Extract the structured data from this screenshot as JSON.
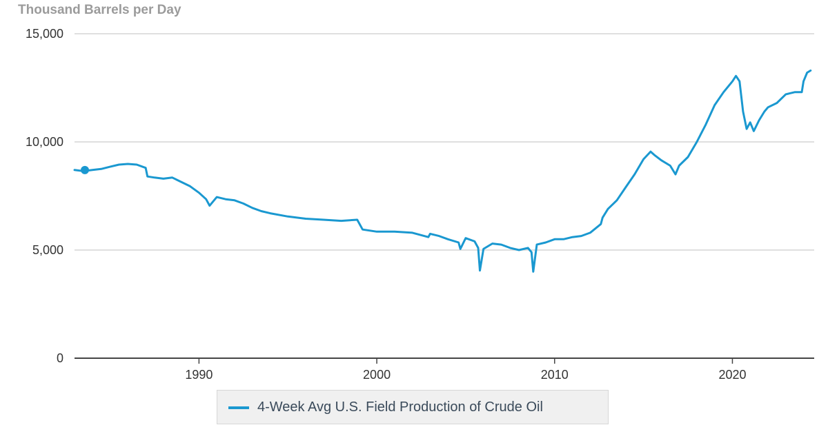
{
  "chart_data": {
    "type": "line",
    "title": "",
    "ylabel": "Thousand Barrels per Day",
    "xlabel": "",
    "xlim": [
      1983.0,
      2024.6
    ],
    "ylim": [
      0,
      15000
    ],
    "yticks": [
      0,
      5000,
      10000,
      15000
    ],
    "ytick_labels": [
      "0",
      "5,000",
      "10,000",
      "15,000"
    ],
    "xticks": [
      1990,
      2000,
      2010,
      2020
    ],
    "xtick_labels": [
      "1990",
      "2000",
      "2010",
      "2020"
    ],
    "grid": true,
    "legend_position": "bottom-center",
    "colors": {
      "series": "#1a98d0",
      "grid": "#cccccc",
      "axis": "#444444"
    },
    "series": [
      {
        "name": "4-Week Avg U.S. Field Production of Crude Oil",
        "x": [
          1983.0,
          1983.5,
          1984.0,
          1984.5,
          1985.0,
          1985.5,
          1986.0,
          1986.5,
          1987.0,
          1987.1,
          1987.5,
          1988.0,
          1988.5,
          1989.0,
          1989.5,
          1990.0,
          1990.4,
          1990.6,
          1991.0,
          1991.5,
          1992.0,
          1992.5,
          1993.0,
          1993.5,
          1994.0,
          1995.0,
          1996.0,
          1997.0,
          1998.0,
          1998.9,
          1999.2,
          2000.0,
          2001.0,
          2002.0,
          2002.9,
          2003.0,
          2003.5,
          2004.0,
          2004.6,
          2004.7,
          2005.0,
          2005.5,
          2005.7,
          2005.8,
          2006.0,
          2006.5,
          2007.0,
          2007.5,
          2008.0,
          2008.5,
          2008.7,
          2008.8,
          2009.0,
          2009.5,
          2010.0,
          2010.5,
          2011.0,
          2011.5,
          2012.0,
          2012.6,
          2012.7,
          2013.0,
          2013.5,
          2014.0,
          2014.5,
          2015.0,
          2015.4,
          2015.6,
          2016.0,
          2016.5,
          2016.8,
          2017.0,
          2017.5,
          2018.0,
          2018.5,
          2019.0,
          2019.5,
          2020.0,
          2020.2,
          2020.4,
          2020.6,
          2020.8,
          2021.0,
          2021.2,
          2021.5,
          2021.8,
          2022.0,
          2022.5,
          2023.0,
          2023.5,
          2023.9,
          2024.0,
          2024.2,
          2024.4
        ],
        "values": [
          8700,
          8650,
          8700,
          8750,
          8850,
          8950,
          8980,
          8950,
          8800,
          8400,
          8350,
          8300,
          8350,
          8150,
          7950,
          7650,
          7350,
          7050,
          7450,
          7350,
          7300,
          7150,
          6950,
          6800,
          6700,
          6550,
          6450,
          6400,
          6350,
          6400,
          5950,
          5850,
          5850,
          5800,
          5600,
          5750,
          5650,
          5500,
          5350,
          5050,
          5550,
          5400,
          5100,
          4050,
          5050,
          5300,
          5250,
          5100,
          5000,
          5100,
          4900,
          4000,
          5250,
          5350,
          5500,
          5500,
          5600,
          5650,
          5800,
          6200,
          6500,
          6900,
          7300,
          7900,
          8500,
          9200,
          9550,
          9400,
          9150,
          8900,
          8500,
          8900,
          9300,
          10000,
          10800,
          11700,
          12300,
          12800,
          13050,
          12800,
          11400,
          10600,
          10900,
          10500,
          11000,
          11400,
          11600,
          11800,
          12200,
          12300,
          12300,
          12800,
          13200,
          13300
        ]
      }
    ]
  }
}
